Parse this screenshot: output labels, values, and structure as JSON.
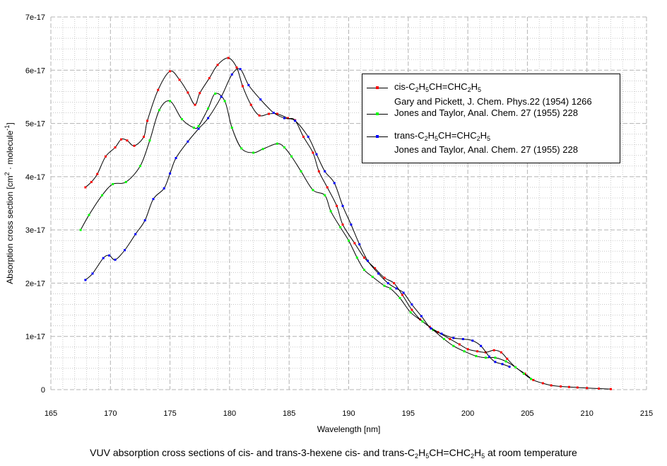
{
  "chart_data": {
    "type": "line",
    "xlabel": "Wavelength [nm]",
    "ylabel": [
      {
        "t": "Absorption cross section [cm"
      },
      {
        "sup": "2"
      },
      {
        "t": " · molecule"
      },
      {
        "sup": "-1"
      },
      {
        "t": "]"
      }
    ],
    "xlim": [
      165,
      215
    ],
    "ylim": [
      0,
      7e-17
    ],
    "x_ticks": [
      "165",
      "170",
      "175",
      "180",
      "185",
      "190",
      "195",
      "200",
      "205",
      "210",
      "215"
    ],
    "y_ticks": [
      "0",
      "1e-17",
      "2e-17",
      "3e-17",
      "4e-17",
      "5e-17",
      "6e-17",
      "7e-17"
    ],
    "grid": true,
    "legend_position": "top-right",
    "y_unit_scale": 1e-17,
    "series": [
      {
        "name": "cis-C2H5CH=CHC2H5, Gary and Pickett, J. Chem. Phys.22 (1954) 1266",
        "color": "#ff0000",
        "points": [
          [
            167.9,
            3.8
          ],
          [
            168.4,
            3.9
          ],
          [
            168.9,
            4.05
          ],
          [
            169.6,
            4.38
          ],
          [
            170.4,
            4.55
          ],
          [
            170.9,
            4.7
          ],
          [
            171.4,
            4.68
          ],
          [
            172.0,
            4.58
          ],
          [
            172.8,
            4.75
          ],
          [
            173.1,
            5.05
          ],
          [
            174.0,
            5.63
          ],
          [
            175.0,
            5.98
          ],
          [
            175.8,
            5.82
          ],
          [
            176.5,
            5.58
          ],
          [
            177.1,
            5.35
          ],
          [
            177.5,
            5.57
          ],
          [
            178.3,
            5.85
          ],
          [
            179.0,
            6.1
          ],
          [
            179.9,
            6.23
          ],
          [
            180.6,
            6.05
          ],
          [
            181.1,
            5.7
          ],
          [
            181.8,
            5.35
          ],
          [
            182.5,
            5.15
          ],
          [
            183.3,
            5.18
          ],
          [
            184.0,
            5.18
          ],
          [
            184.9,
            5.1
          ],
          [
            185.5,
            5.06
          ],
          [
            186.2,
            4.75
          ],
          [
            187.0,
            4.45
          ],
          [
            187.5,
            4.1
          ],
          [
            188.2,
            3.8
          ],
          [
            189.0,
            3.45
          ],
          [
            189.5,
            3.1
          ],
          [
            190.5,
            2.75
          ],
          [
            191.3,
            2.48
          ],
          [
            192.2,
            2.28
          ],
          [
            193.0,
            2.1
          ],
          [
            193.8,
            2.0
          ],
          [
            194.5,
            1.78
          ],
          [
            195.3,
            1.5
          ],
          [
            196.0,
            1.32
          ],
          [
            196.8,
            1.18
          ],
          [
            197.5,
            1.08
          ],
          [
            198.5,
            0.95
          ],
          [
            199.3,
            0.85
          ],
          [
            200.0,
            0.76
          ],
          [
            200.8,
            0.72
          ],
          [
            201.5,
            0.7
          ],
          [
            202.2,
            0.74
          ],
          [
            202.8,
            0.7
          ],
          [
            203.3,
            0.58
          ],
          [
            204.0,
            0.42
          ],
          [
            204.8,
            0.3
          ],
          [
            205.5,
            0.18
          ],
          [
            206.3,
            0.12
          ],
          [
            207.0,
            0.08
          ],
          [
            207.8,
            0.06
          ],
          [
            208.5,
            0.05
          ],
          [
            209.2,
            0.04
          ],
          [
            210.0,
            0.03
          ],
          [
            211.0,
            0.02
          ],
          [
            212.0,
            0.01
          ]
        ]
      },
      {
        "name": "cis-C2H5CH=CHC2H5, Jones and Taylor, Anal. Chem. 27 (1955) 228",
        "color": "#00ff00",
        "points": [
          [
            167.5,
            3.0
          ],
          [
            168.2,
            3.28
          ],
          [
            169.3,
            3.65
          ],
          [
            170.2,
            3.86
          ],
          [
            171.3,
            3.9
          ],
          [
            172.5,
            4.2
          ],
          [
            173.3,
            4.68
          ],
          [
            174.1,
            5.25
          ],
          [
            175.0,
            5.42
          ],
          [
            176.0,
            5.08
          ],
          [
            177.0,
            4.92
          ],
          [
            177.4,
            4.95
          ],
          [
            178.2,
            5.28
          ],
          [
            178.8,
            5.56
          ],
          [
            179.6,
            5.42
          ],
          [
            180.2,
            4.92
          ],
          [
            181.0,
            4.53
          ],
          [
            182.0,
            4.45
          ],
          [
            182.8,
            4.52
          ],
          [
            184.0,
            4.62
          ],
          [
            184.6,
            4.55
          ],
          [
            185.2,
            4.38
          ],
          [
            186.0,
            4.1
          ],
          [
            187.0,
            3.75
          ],
          [
            188.0,
            3.65
          ],
          [
            188.5,
            3.35
          ],
          [
            189.3,
            3.05
          ],
          [
            190.0,
            2.8
          ],
          [
            190.7,
            2.48
          ],
          [
            191.3,
            2.25
          ],
          [
            192.0,
            2.12
          ],
          [
            193.0,
            1.95
          ],
          [
            193.5,
            1.9
          ],
          [
            194.3,
            1.72
          ],
          [
            195.2,
            1.45
          ],
          [
            196.2,
            1.28
          ],
          [
            197.1,
            1.12
          ],
          [
            198.0,
            0.95
          ],
          [
            198.8,
            0.82
          ],
          [
            199.7,
            0.72
          ],
          [
            200.7,
            0.63
          ],
          [
            201.5,
            0.6
          ],
          [
            202.3,
            0.6
          ],
          [
            203.2,
            0.53
          ],
          [
            204.0,
            0.42
          ],
          [
            204.7,
            0.3
          ],
          [
            205.3,
            0.2
          ]
        ]
      },
      {
        "name": "trans-C2H5CH=CHC2H5, Jones and Taylor, Anal. Chem. 27 (1955) 228",
        "color": "#0000ff",
        "points": [
          [
            167.9,
            2.06
          ],
          [
            168.5,
            2.18
          ],
          [
            169.4,
            2.47
          ],
          [
            169.9,
            2.52
          ],
          [
            170.4,
            2.44
          ],
          [
            171.2,
            2.62
          ],
          [
            172.1,
            2.92
          ],
          [
            172.9,
            3.18
          ],
          [
            173.6,
            3.58
          ],
          [
            174.5,
            3.78
          ],
          [
            175.0,
            4.06
          ],
          [
            175.5,
            4.35
          ],
          [
            176.5,
            4.66
          ],
          [
            177.4,
            4.9
          ],
          [
            178.2,
            5.1
          ],
          [
            179.3,
            5.5
          ],
          [
            180.2,
            5.92
          ],
          [
            180.9,
            6.02
          ],
          [
            181.6,
            5.72
          ],
          [
            182.6,
            5.45
          ],
          [
            183.7,
            5.2
          ],
          [
            184.6,
            5.1
          ],
          [
            185.5,
            5.05
          ],
          [
            186.6,
            4.75
          ],
          [
            187.3,
            4.42
          ],
          [
            188.0,
            4.1
          ],
          [
            188.8,
            3.88
          ],
          [
            189.5,
            3.45
          ],
          [
            190.2,
            3.1
          ],
          [
            190.9,
            2.73
          ],
          [
            191.6,
            2.42
          ],
          [
            192.5,
            2.18
          ],
          [
            193.3,
            2.0
          ],
          [
            194.0,
            1.9
          ],
          [
            194.6,
            1.82
          ],
          [
            195.3,
            1.6
          ],
          [
            196.1,
            1.38
          ],
          [
            196.9,
            1.15
          ],
          [
            197.8,
            1.05
          ],
          [
            198.8,
            0.97
          ],
          [
            199.6,
            0.95
          ],
          [
            200.4,
            0.92
          ],
          [
            201.1,
            0.82
          ],
          [
            201.8,
            0.62
          ],
          [
            202.3,
            0.52
          ],
          [
            202.9,
            0.48
          ],
          [
            203.5,
            0.43
          ]
        ]
      }
    ],
    "legend": [
      {
        "color": "#ff0000",
        "label": [
          {
            "t": "cis-C"
          },
          {
            "sub": "2"
          },
          {
            "t": "H"
          },
          {
            "sub": "5"
          },
          {
            "t": "CH=CHC"
          },
          {
            "sub": "2"
          },
          {
            "t": "H"
          },
          {
            "sub": "5"
          }
        ]
      },
      {
        "color": "",
        "label": [
          {
            "t": "Gary and Pickett, J. Chem. Phys.22 (1954) 1266"
          }
        ]
      },
      {
        "color": "#00ff00",
        "label": [
          {
            "t": "Jones and Taylor, Anal. Chem. 27 (1955) 228"
          }
        ]
      },
      {
        "color": "#0000ff",
        "label": [
          {
            "t": "trans-C"
          },
          {
            "sub": "2"
          },
          {
            "t": "H"
          },
          {
            "sub": "5"
          },
          {
            "t": "CH=CHC"
          },
          {
            "sub": "2"
          },
          {
            "t": "H"
          },
          {
            "sub": "5"
          }
        ]
      },
      {
        "color": "",
        "label": [
          {
            "t": "Jones and Taylor, Anal. Chem. 27 (1955) 228"
          }
        ]
      }
    ],
    "caption": [
      {
        "t": "VUV absorption cross sections of cis- and trans-3-hexene cis- and trans-C"
      },
      {
        "sub": "2"
      },
      {
        "t": "H"
      },
      {
        "sub": "5"
      },
      {
        "t": "CH=CHC"
      },
      {
        "sub": "2"
      },
      {
        "t": "H"
      },
      {
        "sub": "5"
      },
      {
        "t": " at room temperature"
      }
    ]
  }
}
